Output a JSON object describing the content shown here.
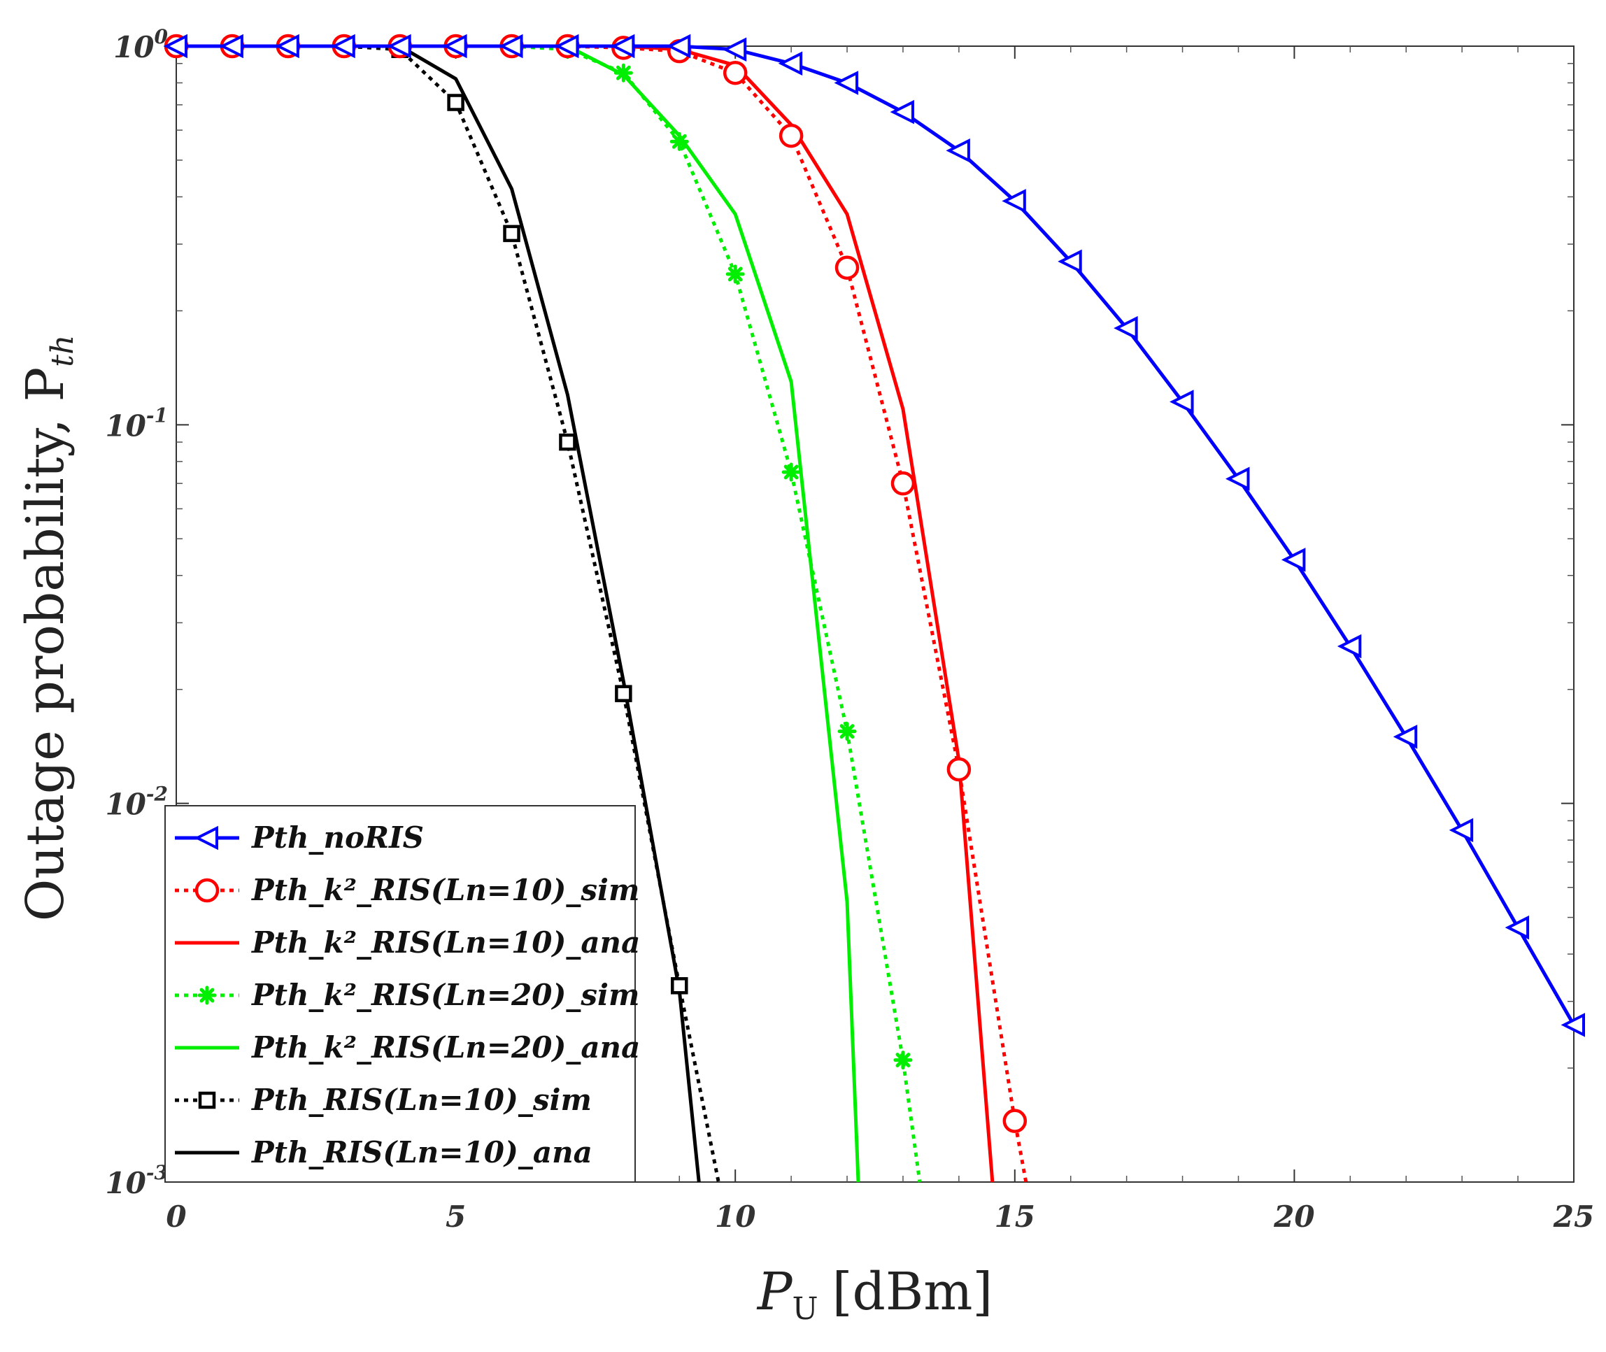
{
  "chart_data": {
    "type": "line",
    "ylabel": "Outage probability, P",
    "ylabel_sub": "th",
    "xlabel": "P",
    "xlabel_sub": "U",
    "xlabel_unit": "[dBm]",
    "xlim": [
      0,
      25
    ],
    "ylim": [
      0.001,
      1
    ],
    "yscale": "log",
    "grid": false,
    "legend_position": "bottom-left",
    "x_ticks": [
      {
        "value": 0,
        "label": "0"
      },
      {
        "value": 5,
        "label": "5"
      },
      {
        "value": 10,
        "label": "10"
      },
      {
        "value": 15,
        "label": "15"
      },
      {
        "value": 20,
        "label": "20"
      },
      {
        "value": 25,
        "label": "25"
      }
    ],
    "y_ticks": [
      {
        "value": 1,
        "base": "10",
        "exp": "0"
      },
      {
        "value": 0.1,
        "base": "10",
        "exp": "-1"
      },
      {
        "value": 0.01,
        "base": "10",
        "exp": "-2"
      },
      {
        "value": 0.001,
        "base": "10",
        "exp": "-3"
      }
    ],
    "series": [
      {
        "name": "Pth_noRIS",
        "color": "#0000ff",
        "dash": "solid",
        "marker": "triangle-left",
        "x": [
          0,
          1,
          2,
          3,
          4,
          5,
          6,
          7,
          8,
          9,
          10,
          11,
          12,
          13,
          14,
          15,
          16,
          17,
          18,
          19,
          20,
          21,
          22,
          23,
          24,
          25
        ],
        "y": [
          1,
          1,
          1,
          1,
          1,
          1,
          1,
          1,
          1,
          1,
          0.98,
          0.9,
          0.8,
          0.67,
          0.53,
          0.39,
          0.27,
          0.18,
          0.115,
          0.072,
          0.044,
          0.026,
          0.015,
          0.0085,
          0.0047,
          0.0026
        ]
      },
      {
        "name": "Pth_k²_RIS(Ln=10)_sim",
        "color": "#ff0000",
        "dash": "dotted",
        "marker": "circle",
        "x": [
          0,
          1,
          2,
          3,
          4,
          5,
          6,
          7,
          8,
          9,
          10,
          11,
          12,
          13,
          14,
          15,
          15.2
        ],
        "y": [
          1,
          1,
          1,
          1,
          1,
          1,
          1,
          1,
          0.99,
          0.97,
          0.85,
          0.58,
          0.26,
          0.07,
          0.0123,
          0.00145,
          0.001
        ]
      },
      {
        "name": "Pth_k²_RIS(Ln=10)_ana",
        "color": "#ff0000",
        "dash": "solid",
        "marker": "none",
        "x": [
          0,
          8,
          9,
          10,
          11,
          12,
          13,
          14,
          14.6
        ],
        "y": [
          1,
          1,
          0.98,
          0.89,
          0.62,
          0.36,
          0.11,
          0.013,
          0.001
        ]
      },
      {
        "name": "Pth_k²_RIS(Ln=20)_sim",
        "color": "#00ee00",
        "dash": "dotted",
        "marker": "asterisk",
        "x": [
          0,
          1,
          2,
          3,
          4,
          5,
          6,
          7,
          8,
          9,
          10,
          11,
          12,
          13,
          13.3
        ],
        "y": [
          1,
          1,
          1,
          1,
          1,
          1,
          1,
          0.98,
          0.85,
          0.56,
          0.25,
          0.075,
          0.0155,
          0.0021,
          0.001
        ]
      },
      {
        "name": "Pth_k²_RIS(Ln=20)_ana",
        "color": "#00ee00",
        "dash": "solid",
        "marker": "none",
        "x": [
          0,
          7,
          8,
          9,
          10,
          11,
          12,
          12.2
        ],
        "y": [
          1,
          1,
          0.84,
          0.58,
          0.36,
          0.13,
          0.0055,
          0.001
        ]
      },
      {
        "name": "Pth_RIS(Ln=10)_sim",
        "color": "#000000",
        "dash": "dotted",
        "marker": "square",
        "x": [
          0,
          1,
          2,
          3,
          4,
          5,
          6,
          7,
          8,
          9,
          9.7
        ],
        "y": [
          1,
          1,
          1,
          1,
          0.98,
          0.71,
          0.32,
          0.09,
          0.0195,
          0.0033,
          0.001
        ]
      },
      {
        "name": "Pth_RIS(Ln=10)_ana",
        "color": "#000000",
        "dash": "solid",
        "marker": "none",
        "x": [
          0,
          4,
          5,
          6,
          7,
          8,
          9,
          9.35
        ],
        "y": [
          1,
          1,
          0.82,
          0.42,
          0.12,
          0.021,
          0.0032,
          0.001
        ]
      }
    ]
  }
}
